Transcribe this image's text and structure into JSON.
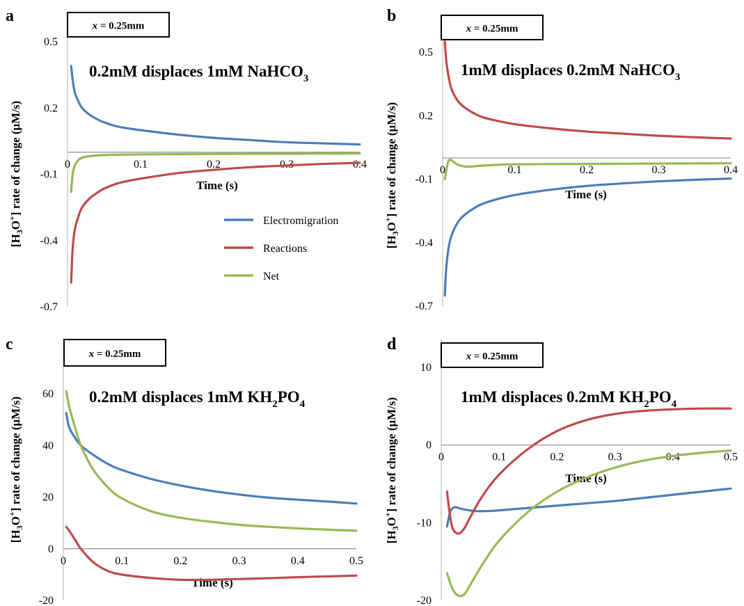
{
  "figure": {
    "series_colors": {
      "Electromigration": "#4a7ebb",
      "Reactions": "#be4b48",
      "Net": "#98b954"
    },
    "legend": {
      "placement": "center-right of panel a",
      "entries": [
        "Electromigration",
        "Reactions",
        "Net"
      ]
    }
  },
  "chart_data": [
    {
      "panel": "a",
      "type": "line",
      "title_main": "0.2mM displaces 1mM NaHCO",
      "title_sub": "3",
      "box_label": "x = 0.25mm",
      "box_label_italic": "x",
      "box_label_rest": " = 0.25mm",
      "xlabel": "Time (s)",
      "ylabel": "[H3O+] rate of change (μM/s)",
      "xlim": [
        0,
        0.4
      ],
      "ylim": [
        -0.7,
        0.5
      ],
      "xticks": [
        0,
        0.1,
        0.2,
        0.3,
        0.4
      ],
      "xtick_labels": [
        "0",
        "0.1",
        "0.2",
        "0.3",
        "0.4"
      ],
      "yticks": [
        0.5,
        0.2,
        -0.1,
        -0.4,
        -0.7
      ],
      "ytick_labels": [
        "0.5",
        "0.2",
        "-0.1",
        "-0.4",
        "-0.7"
      ],
      "series": [
        {
          "name": "Electromigration",
          "x": [
            0.005,
            0.007,
            0.01,
            0.015,
            0.02,
            0.03,
            0.04,
            0.05,
            0.07,
            0.1,
            0.15,
            0.2,
            0.25,
            0.3,
            0.35,
            0.4
          ],
          "y": [
            0.39,
            0.33,
            0.27,
            0.23,
            0.2,
            0.17,
            0.15,
            0.135,
            0.115,
            0.1,
            0.08,
            0.065,
            0.055,
            0.045,
            0.04,
            0.035
          ]
        },
        {
          "name": "Reactions",
          "x": [
            0.005,
            0.007,
            0.01,
            0.015,
            0.02,
            0.03,
            0.04,
            0.05,
            0.07,
            0.1,
            0.15,
            0.2,
            0.25,
            0.3,
            0.35,
            0.4
          ],
          "y": [
            -0.59,
            -0.44,
            -0.35,
            -0.29,
            -0.25,
            -0.21,
            -0.185,
            -0.165,
            -0.14,
            -0.12,
            -0.095,
            -0.08,
            -0.068,
            -0.06,
            -0.053,
            -0.048
          ]
        },
        {
          "name": "Net",
          "x": [
            0.005,
            0.007,
            0.01,
            0.015,
            0.02,
            0.03,
            0.05,
            0.1,
            0.2,
            0.3,
            0.4
          ],
          "y": [
            -0.18,
            -0.1,
            -0.06,
            -0.035,
            -0.025,
            -0.018,
            -0.013,
            -0.01,
            -0.008,
            -0.007,
            -0.006
          ]
        }
      ],
      "show_legend": true
    },
    {
      "panel": "b",
      "type": "line",
      "title_main": "1mM displaces 0.2mM NaHCO",
      "title_sub": "3",
      "box_label": "x = 0.25mm",
      "box_label_italic": "x",
      "box_label_rest": " = 0.25mm",
      "xlabel": "Time (s)",
      "ylabel": "[H3O+] rate of change (μM/s)",
      "xlim": [
        0,
        0.4
      ],
      "ylim": [
        -0.7,
        0.5
      ],
      "xticks": [
        0,
        0.1,
        0.2,
        0.3,
        0.4
      ],
      "xtick_labels": [
        "0",
        "0.1",
        "0.2",
        "0.3",
        "0.4"
      ],
      "yticks": [
        0.5,
        0.2,
        -0.1,
        -0.4,
        -0.7
      ],
      "ytick_labels": [
        "0.5",
        "0.2",
        "-0.1",
        "-0.4",
        "-0.7"
      ],
      "series": [
        {
          "name": "Electromigration",
          "x": [
            0.003,
            0.005,
            0.008,
            0.012,
            0.02,
            0.03,
            0.05,
            0.07,
            0.1,
            0.15,
            0.2,
            0.25,
            0.3,
            0.35,
            0.4
          ],
          "y": [
            -0.65,
            -0.52,
            -0.43,
            -0.37,
            -0.31,
            -0.27,
            -0.225,
            -0.2,
            -0.175,
            -0.15,
            -0.132,
            -0.12,
            -0.11,
            -0.103,
            -0.097
          ]
        },
        {
          "name": "Reactions",
          "x": [
            0.003,
            0.005,
            0.008,
            0.012,
            0.02,
            0.03,
            0.05,
            0.07,
            0.1,
            0.15,
            0.2,
            0.25,
            0.3,
            0.35,
            0.4
          ],
          "y": [
            0.55,
            0.46,
            0.39,
            0.33,
            0.275,
            0.24,
            0.2,
            0.18,
            0.16,
            0.14,
            0.125,
            0.115,
            0.105,
            0.098,
            0.092
          ]
        },
        {
          "name": "Net",
          "x": [
            0.003,
            0.005,
            0.008,
            0.012,
            0.02,
            0.03,
            0.04,
            0.06,
            0.1,
            0.2,
            0.3,
            0.4
          ],
          "y": [
            -0.1,
            -0.06,
            -0.015,
            -0.01,
            -0.03,
            -0.04,
            -0.04,
            -0.035,
            -0.03,
            -0.028,
            -0.026,
            -0.025
          ]
        }
      ],
      "show_legend": false
    },
    {
      "panel": "c",
      "type": "line",
      "title_main": "0.2mM displaces 1mM KH",
      "title_sub": "2",
      "title_tail": "PO",
      "title_sub2": "4",
      "box_label": "x = 0.25mm",
      "box_label_italic": "x",
      "box_label_rest": " = 0.25mm",
      "xlabel": "Time (s)",
      "ylabel": "[H3O+] rate of change (μM/s)",
      "xlim": [
        0,
        0.5
      ],
      "ylim": [
        -20,
        60
      ],
      "xticks": [
        0,
        0.1,
        0.2,
        0.3,
        0.4,
        0.5
      ],
      "xtick_labels": [
        "0",
        "0.1",
        "0.2",
        "0.3",
        "0.4",
        "0.5"
      ],
      "yticks": [
        60,
        40,
        20,
        0,
        -20
      ],
      "ytick_labels": [
        "60",
        "40",
        "20",
        "0",
        "-20"
      ],
      "series": [
        {
          "name": "Electromigration",
          "x": [
            0.005,
            0.01,
            0.02,
            0.03,
            0.05,
            0.075,
            0.1,
            0.15,
            0.2,
            0.25,
            0.3,
            0.35,
            0.4,
            0.45,
            0.5
          ],
          "y": [
            52.5,
            47,
            43,
            40,
            36.5,
            33,
            30.5,
            27,
            24.5,
            22.5,
            21,
            19.8,
            19,
            18.3,
            17.5
          ]
        },
        {
          "name": "Reactions",
          "x": [
            0.005,
            0.01,
            0.02,
            0.03,
            0.05,
            0.075,
            0.1,
            0.15,
            0.2,
            0.25,
            0.3,
            0.35,
            0.4,
            0.45,
            0.5
          ],
          "y": [
            8.5,
            7,
            3.5,
            0,
            -5,
            -8.5,
            -10,
            -11.3,
            -12,
            -12,
            -11.7,
            -11.4,
            -11,
            -10.7,
            -10.4
          ]
        },
        {
          "name": "Net",
          "x": [
            0.005,
            0.01,
            0.02,
            0.03,
            0.05,
            0.075,
            0.1,
            0.15,
            0.2,
            0.25,
            0.3,
            0.35,
            0.4,
            0.45,
            0.5
          ],
          "y": [
            61,
            55,
            47,
            40,
            31,
            24,
            19.5,
            14.5,
            12,
            10.5,
            9.3,
            8.5,
            7.9,
            7.4,
            7
          ]
        }
      ],
      "show_legend": false
    },
    {
      "panel": "d",
      "type": "line",
      "title_main": "1mM displaces 0.2mM KH",
      "title_sub": "2",
      "title_tail": "PO",
      "title_sub2": "4",
      "box_label": "x = 0.25mm",
      "box_label_italic": "x",
      "box_label_rest": " = 0.25mm",
      "xlabel": "Time (s)",
      "ylabel": "[H3O+] rate of change (μM/s)",
      "xlim": [
        0,
        0.5
      ],
      "ylim": [
        -20,
        10
      ],
      "xticks": [
        0,
        0.1,
        0.2,
        0.3,
        0.4,
        0.5
      ],
      "xtick_labels": [
        "0",
        "0.1",
        "0.2",
        "0.3",
        "0.4",
        "0.5"
      ],
      "yticks": [
        10,
        0,
        -10,
        -20
      ],
      "ytick_labels": [
        "10",
        "0",
        "-10",
        "-20"
      ],
      "series": [
        {
          "name": "Electromigration",
          "x": [
            0.01,
            0.015,
            0.02,
            0.025,
            0.03,
            0.04,
            0.06,
            0.08,
            0.1,
            0.15,
            0.2,
            0.25,
            0.3,
            0.35,
            0.4,
            0.45,
            0.5
          ],
          "y": [
            -10.5,
            -8.7,
            -8.1,
            -8.0,
            -8.1,
            -8.3,
            -8.5,
            -8.5,
            -8.4,
            -8.1,
            -7.8,
            -7.5,
            -7.2,
            -6.8,
            -6.4,
            -6.0,
            -5.6
          ]
        },
        {
          "name": "Reactions",
          "x": [
            0.01,
            0.015,
            0.02,
            0.03,
            0.04,
            0.05,
            0.07,
            0.1,
            0.15,
            0.2,
            0.25,
            0.3,
            0.35,
            0.4,
            0.45,
            0.5
          ],
          "y": [
            -6.0,
            -9.0,
            -10.8,
            -11.4,
            -10.7,
            -9.3,
            -6.7,
            -3.8,
            -0.5,
            1.8,
            3.2,
            4.0,
            4.4,
            4.6,
            4.7,
            4.7
          ]
        },
        {
          "name": "Net",
          "x": [
            0.01,
            0.02,
            0.03,
            0.04,
            0.05,
            0.07,
            0.1,
            0.15,
            0.2,
            0.25,
            0.3,
            0.35,
            0.4,
            0.45,
            0.5
          ],
          "y": [
            -16.5,
            -18.6,
            -19.4,
            -19.2,
            -18.0,
            -15.5,
            -12.3,
            -8.6,
            -6.0,
            -4.2,
            -2.9,
            -2.0,
            -1.4,
            -1.0,
            -0.7
          ]
        }
      ],
      "show_legend": false
    }
  ]
}
